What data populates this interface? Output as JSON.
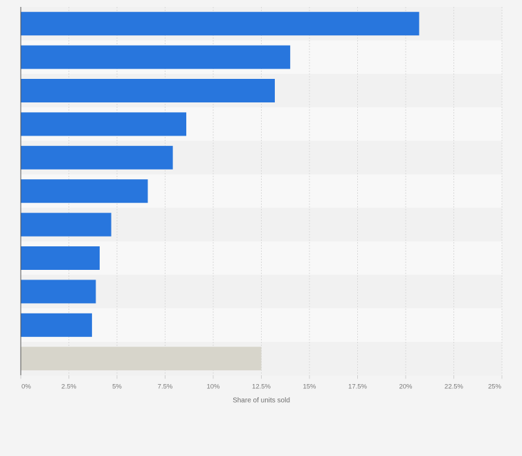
{
  "chart_data": {
    "type": "bar",
    "orientation": "horizontal",
    "xlabel": "Share of units sold",
    "ylabel": "",
    "xlim": [
      0,
      25
    ],
    "x_ticks": [
      "0%",
      "2.5%",
      "5%",
      "7.5%",
      "10%",
      "12.5%",
      "15%",
      "17.5%",
      "20%",
      "22.5%",
      "25%"
    ],
    "categories": [
      "",
      "",
      "",
      "",
      "",
      "",
      "",
      "",
      "",
      "",
      ""
    ],
    "values": [
      20.7,
      14.0,
      13.2,
      8.6,
      7.9,
      6.6,
      4.7,
      4.1,
      3.9,
      3.7,
      12.5
    ],
    "bar_colors": [
      "#2876dd",
      "#2876dd",
      "#2876dd",
      "#2876dd",
      "#2876dd",
      "#2876dd",
      "#2876dd",
      "#2876dd",
      "#2876dd",
      "#2876dd",
      "#d7d5cb"
    ],
    "band_colors": [
      "#f1f1f1",
      "#f8f8f8"
    ],
    "grid": true,
    "legend": "none"
  }
}
